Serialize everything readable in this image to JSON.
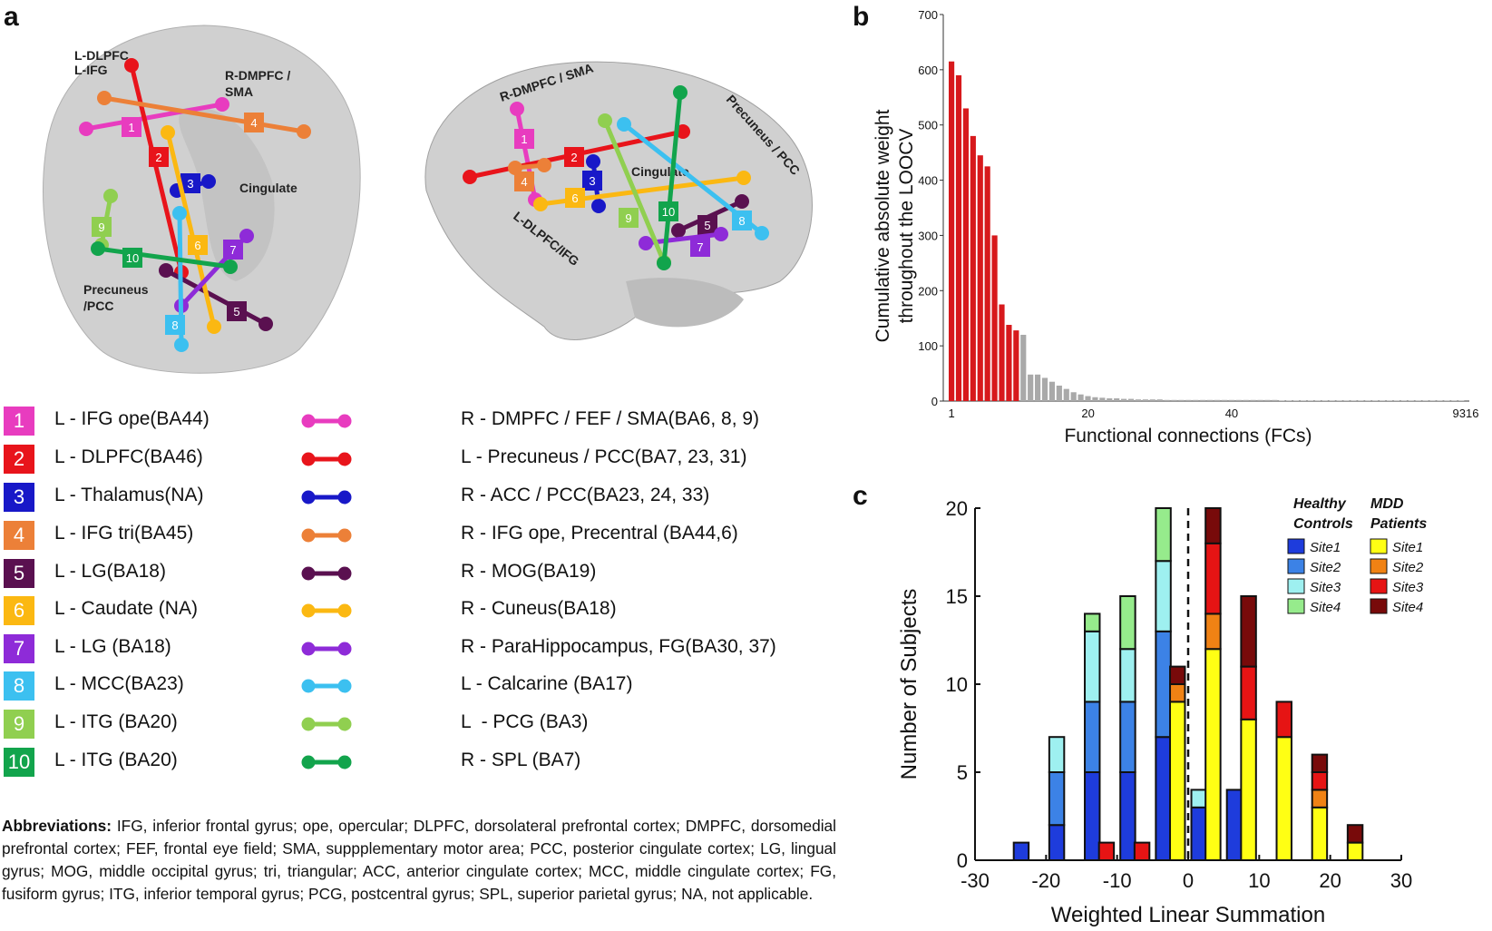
{
  "panels": {
    "a": "a",
    "b": "b",
    "c": "c"
  },
  "brain_labels": {
    "axial": [
      "L-DLPFC",
      "L-IFG",
      "R-DMPFC /",
      "SMA",
      "Cingulate",
      "Precuneus",
      "/PCC"
    ],
    "sagittal": [
      "R-DMPFC / SMA",
      "Precuneus / PCC",
      "Cingulate",
      "L-DLPFC/IFG"
    ]
  },
  "legend": [
    {
      "num": "1",
      "color": "#e83cbf",
      "left": "L - IFG ope(BA44)",
      "right": "R - DMPFC / FEF / SMA(BA6, 8, 9)"
    },
    {
      "num": "2",
      "color": "#e8141b",
      "left": "L - DLPFC(BA46)",
      "right": "L - Precuneus / PCC(BA7, 23, 31)"
    },
    {
      "num": "3",
      "color": "#1818c8",
      "left": "L - Thalamus(NA)",
      "right": "R - ACC / PCC(BA23, 24, 33)"
    },
    {
      "num": "4",
      "color": "#ec8038",
      "left": "L - IFG tri(BA45)",
      "right": "R - IFG ope, Precentral (BA44,6)"
    },
    {
      "num": "5",
      "color": "#5a1050",
      "left": "L - LG(BA18)",
      "right": "R - MOG(BA19)"
    },
    {
      "num": "6",
      "color": "#fbb812",
      "left": "L - Caudate (NA)",
      "right": "R - Cuneus(BA18)"
    },
    {
      "num": "7",
      "color": "#8e2bd8",
      "left": "L - LG (BA18)",
      "right": "R - ParaHippocampus, FG(BA30, 37)"
    },
    {
      "num": "8",
      "color": "#3cc0f0",
      "left": "L - MCC(BA23)",
      "right": "L - Calcarine (BA17)"
    },
    {
      "num": "9",
      "color": "#90cf50",
      "left": "L - ITG (BA20)",
      "right": "L  - PCG (BA3)"
    },
    {
      "num": "10",
      "color": "#12a44c",
      "left": "L - ITG (BA20)",
      "right": "R - SPL (BA7)"
    }
  ],
  "abbreviations": {
    "heading": "Abbreviations:",
    "text": " IFG, inferior frontal gyrus; ope, opercular; DLPFC, dorsolateral prefrontal cortex; DMPFC, dorsomedial prefrontal cortex; FEF, frontal eye field; SMA, suppplementary motor area; PCC, posterior cingulate cortex; LG, lingual gyrus; MOG, middle occipital gyrus; tri, triangular; ACC, anterior cingulate cortex; MCC, middle cingulate cortex; FG, fusiform gyrus; ITG, inferior temporal gyrus; PCG, postcentral gyrus; SPL, superior parietal gyrus; NA, not applicable."
  },
  "chart_data": [
    {
      "id": "b",
      "type": "bar",
      "ylabel": [
        "Cumulative absolute weight",
        "throughout the LOOCV"
      ],
      "xlabel": "Functional connections (FCs)",
      "ylim": [
        0,
        700
      ],
      "yticks": [
        0,
        100,
        200,
        300,
        400,
        500,
        600,
        700
      ],
      "xtick_labels": [
        "1",
        "20",
        "40",
        "9316"
      ],
      "colors": {
        "highlight": "#d7191c",
        "rest": "#a9a9a9"
      },
      "highlighted_count": 10,
      "values": [
        615,
        590,
        530,
        480,
        445,
        425,
        300,
        175,
        138,
        128,
        120,
        48,
        48,
        42,
        35,
        28,
        22,
        16,
        12,
        9,
        7,
        6,
        5,
        5,
        4,
        4,
        3,
        3,
        3,
        3,
        2,
        2,
        2,
        2,
        2,
        2,
        2,
        2,
        2,
        2,
        2,
        2,
        2,
        2,
        2,
        2,
        1,
        1,
        1,
        1,
        1,
        1,
        1,
        1,
        1,
        1,
        1,
        1,
        1,
        1,
        1,
        1,
        1,
        1,
        1,
        1,
        1,
        1,
        1,
        1,
        1,
        1
      ]
    },
    {
      "id": "c",
      "type": "bar",
      "stacked": true,
      "xlabel": "Weighted Linear Summation",
      "ylabel": "Number of Subjects",
      "xlim": [
        -30,
        30
      ],
      "ylim": [
        0,
        20
      ],
      "xticks": [
        -30,
        -20,
        -10,
        0,
        10,
        20,
        30
      ],
      "yticks": [
        0,
        5,
        10,
        15,
        20
      ],
      "legend": {
        "groups": [
          {
            "title": [
              "Healthy",
              "Controls"
            ],
            "entries": [
              {
                "name": "Site1",
                "color": "#1e3cdc"
              },
              {
                "name": "Site2",
                "color": "#3c82e6"
              },
              {
                "name": "Site3",
                "color": "#9ef0f0"
              },
              {
                "name": "Site4",
                "color": "#96eb8c"
              }
            ]
          },
          {
            "title": [
              "MDD",
              "Patients"
            ],
            "entries": [
              {
                "name": "Site1",
                "color": "#ffff14"
              },
              {
                "name": "Site2",
                "color": "#f08214"
              },
              {
                "name": "Site3",
                "color": "#e61414"
              },
              {
                "name": "Site4",
                "color": "#780a0a"
              }
            ]
          }
        ]
      },
      "series": [
        {
          "group": "Healthy Controls",
          "bins": [
            {
              "x": -23.5,
              "stack": [
                1,
                0,
                0,
                0
              ]
            },
            {
              "x": -18.5,
              "stack": [
                2,
                3,
                2,
                0
              ]
            },
            {
              "x": -13.5,
              "stack": [
                5,
                4,
                4,
                1
              ]
            },
            {
              "x": -8.5,
              "stack": [
                5,
                4,
                3,
                3
              ]
            },
            {
              "x": -3.5,
              "stack": [
                7,
                6,
                4,
                3
              ]
            },
            {
              "x": 1.5,
              "stack": [
                3,
                0,
                1,
                0
              ]
            },
            {
              "x": 6.5,
              "stack": [
                4,
                0,
                0,
                0
              ]
            }
          ]
        },
        {
          "group": "MDD Patients",
          "bins": [
            {
              "x": -11.5,
              "stack": [
                0,
                0,
                1,
                0
              ]
            },
            {
              "x": -6.5,
              "stack": [
                0,
                0,
                1,
                0
              ]
            },
            {
              "x": -1.5,
              "stack": [
                9,
                1,
                0,
                1
              ]
            },
            {
              "x": 3.5,
              "stack": [
                12,
                2,
                4,
                2
              ]
            },
            {
              "x": 8.5,
              "stack": [
                8,
                0,
                3,
                4
              ]
            },
            {
              "x": 13.5,
              "stack": [
                7,
                0,
                2,
                0
              ]
            },
            {
              "x": 18.5,
              "stack": [
                3,
                1,
                1,
                1
              ]
            },
            {
              "x": 23.5,
              "stack": [
                1,
                0,
                0,
                1
              ]
            }
          ]
        }
      ]
    }
  ]
}
